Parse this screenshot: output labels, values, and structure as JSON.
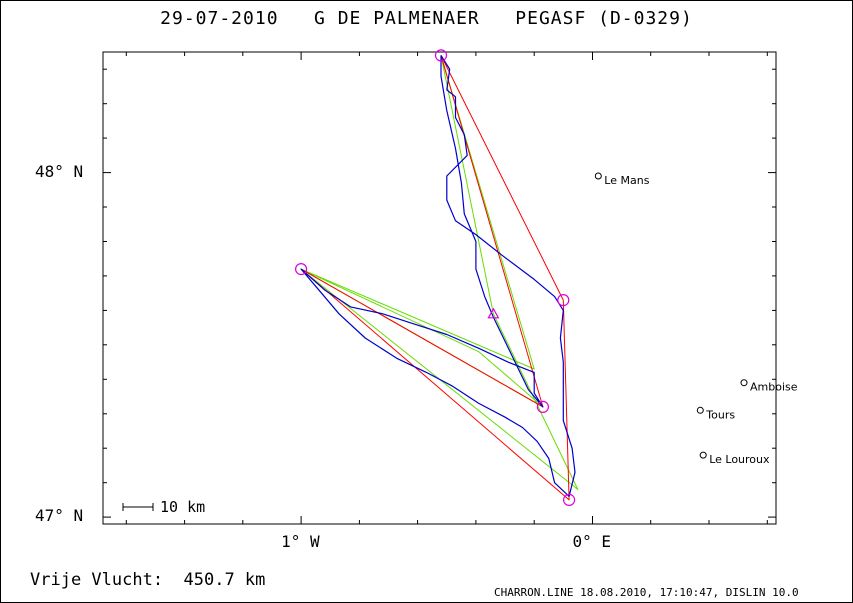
{
  "title": "29-07-2010   G DE PALMENAER   PEGASF (D-0329)",
  "axes": {
    "lat_labels": [
      {
        "text": "48° N",
        "lat": 48.0
      },
      {
        "text": "47° N",
        "lat": 47.0
      }
    ],
    "lon_labels": [
      {
        "text": "1° W",
        "lon": -1.0
      },
      {
        "text": "0° E",
        "lon": 0.0
      }
    ],
    "lon_range": [
      -1.68,
      0.63
    ],
    "lat_range": [
      46.98,
      48.35
    ]
  },
  "scale_bar": {
    "label": "10 km"
  },
  "towns": [
    {
      "name": "Le Mans",
      "lon": 0.02,
      "lat": 47.99
    },
    {
      "name": "Amboise",
      "lon": 0.52,
      "lat": 47.39
    },
    {
      "name": "Tours",
      "lon": 0.37,
      "lat": 47.31
    },
    {
      "name": "Le Louroux",
      "lon": 0.38,
      "lat": 47.18
    }
  ],
  "turnpoints": [
    {
      "lon": -0.52,
      "lat": 48.34
    },
    {
      "lon": -0.1,
      "lat": 47.63
    },
    {
      "lon": -0.08,
      "lat": 47.05
    },
    {
      "lon": -1.0,
      "lat": 47.72
    },
    {
      "lon": -0.17,
      "lat": 47.32
    }
  ],
  "start_point": {
    "lon": -0.34,
    "lat": 47.59
  },
  "route_red": [
    [
      -0.52,
      48.34
    ],
    [
      -0.1,
      47.63
    ],
    [
      -0.08,
      47.05
    ],
    [
      -1.0,
      47.72
    ],
    [
      -0.17,
      47.32
    ],
    [
      -0.52,
      48.34
    ]
  ],
  "route_green": [
    [
      -0.52,
      48.34
    ],
    [
      -0.34,
      47.59
    ],
    [
      -0.05,
      47.08
    ],
    [
      -1.0,
      47.72
    ],
    [
      -0.17,
      47.32
    ],
    [
      -0.39,
      47.48
    ],
    [
      -1.0,
      47.72
    ],
    [
      -0.2,
      47.43
    ],
    [
      -0.52,
      48.34
    ]
  ],
  "track_blue": [
    [
      -0.52,
      48.34
    ],
    [
      -0.49,
      48.3
    ],
    [
      -0.5,
      48.24
    ],
    [
      -0.47,
      48.22
    ],
    [
      -0.47,
      48.16
    ],
    [
      -0.44,
      48.11
    ],
    [
      -0.43,
      48.05
    ],
    [
      -0.5,
      47.99
    ],
    [
      -0.5,
      47.92
    ],
    [
      -0.47,
      47.86
    ],
    [
      -0.4,
      47.82
    ],
    [
      -0.31,
      47.76
    ],
    [
      -0.2,
      47.69
    ],
    [
      -0.13,
      47.64
    ],
    [
      -0.1,
      47.6
    ],
    [
      -0.11,
      47.52
    ],
    [
      -0.1,
      47.45
    ],
    [
      -0.1,
      47.36
    ],
    [
      -0.1,
      47.28
    ],
    [
      -0.07,
      47.2
    ],
    [
      -0.06,
      47.13
    ],
    [
      -0.08,
      47.06
    ],
    [
      -0.13,
      47.1
    ],
    [
      -0.15,
      47.17
    ],
    [
      -0.19,
      47.22
    ],
    [
      -0.24,
      47.26
    ],
    [
      -0.3,
      47.29
    ],
    [
      -0.39,
      47.33
    ],
    [
      -0.48,
      47.38
    ],
    [
      -0.57,
      47.42
    ],
    [
      -0.67,
      47.46
    ],
    [
      -0.78,
      47.52
    ],
    [
      -0.87,
      47.59
    ],
    [
      -0.94,
      47.66
    ],
    [
      -1.0,
      47.72
    ],
    [
      -0.92,
      47.66
    ],
    [
      -0.83,
      47.61
    ],
    [
      -0.72,
      47.59
    ],
    [
      -0.61,
      47.56
    ],
    [
      -0.5,
      47.53
    ],
    [
      -0.39,
      47.49
    ],
    [
      -0.29,
      47.45
    ],
    [
      -0.2,
      47.42
    ],
    [
      -0.2,
      47.36
    ],
    [
      -0.17,
      47.32
    ],
    [
      -0.22,
      47.37
    ],
    [
      -0.26,
      47.44
    ],
    [
      -0.3,
      47.51
    ],
    [
      -0.34,
      47.58
    ],
    [
      -0.37,
      47.64
    ],
    [
      -0.4,
      47.72
    ],
    [
      -0.4,
      47.8
    ],
    [
      -0.44,
      47.88
    ],
    [
      -0.45,
      47.97
    ],
    [
      -0.47,
      48.07
    ],
    [
      -0.5,
      48.18
    ],
    [
      -0.52,
      48.28
    ],
    [
      -0.52,
      48.34
    ]
  ],
  "colors": {
    "track": "#0000cc",
    "route_red": "#ff0000",
    "route_green": "#66dd00",
    "turnpoint": "#dd00dd",
    "axis": "#000000"
  },
  "footer": {
    "distance": "Vrije Vlucht:  450.7 km",
    "credit": "CHARRON.LINE 18.08.2010, 17:10:47, DISLIN 10.0"
  }
}
